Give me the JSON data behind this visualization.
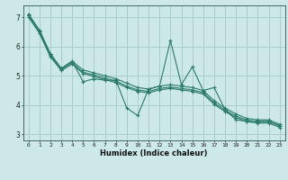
{
  "xlabel": "Humidex (Indice chaleur)",
  "bg_color": "#cce8e8",
  "line_color": "#2a7a6a",
  "grid_color": "#aacccc",
  "xlim": [
    -0.5,
    23.5
  ],
  "ylim": [
    2.8,
    7.4
  ],
  "xticks": [
    0,
    1,
    2,
    3,
    4,
    5,
    6,
    7,
    8,
    9,
    10,
    11,
    12,
    13,
    14,
    15,
    16,
    17,
    18,
    19,
    20,
    21,
    22,
    23
  ],
  "yticks": [
    3,
    4,
    5,
    6,
    7
  ],
  "x_values": [
    0,
    1,
    2,
    3,
    4,
    5,
    6,
    7,
    8,
    9,
    10,
    11,
    12,
    13,
    14,
    15,
    16,
    17,
    18,
    19,
    20,
    21,
    22,
    23
  ],
  "series_zigzag": [
    7.1,
    6.55,
    5.75,
    5.25,
    5.5,
    4.8,
    4.9,
    4.85,
    4.85,
    3.9,
    3.65,
    4.55,
    4.65,
    6.2,
    4.7,
    5.3,
    4.5,
    4.6,
    3.85,
    3.5,
    3.45,
    3.45,
    3.45,
    3.3
  ],
  "series_trend1": [
    7.1,
    6.55,
    5.75,
    5.25,
    5.5,
    5.2,
    5.1,
    5.0,
    4.9,
    4.75,
    4.6,
    4.55,
    4.65,
    4.7,
    4.65,
    4.6,
    4.5,
    4.15,
    3.9,
    3.7,
    3.55,
    3.5,
    3.5,
    3.35
  ],
  "series_trend2": [
    7.05,
    6.5,
    5.7,
    5.22,
    5.45,
    5.12,
    5.03,
    4.92,
    4.82,
    4.65,
    4.52,
    4.47,
    4.57,
    4.62,
    4.57,
    4.52,
    4.43,
    4.08,
    3.83,
    3.63,
    3.49,
    3.44,
    3.44,
    3.29
  ],
  "series_trend3": [
    7.0,
    6.45,
    5.65,
    5.18,
    5.4,
    5.08,
    4.98,
    4.87,
    4.77,
    4.6,
    4.47,
    4.42,
    4.52,
    4.57,
    4.52,
    4.47,
    4.38,
    4.03,
    3.78,
    3.58,
    3.44,
    3.39,
    3.39,
    3.24
  ]
}
